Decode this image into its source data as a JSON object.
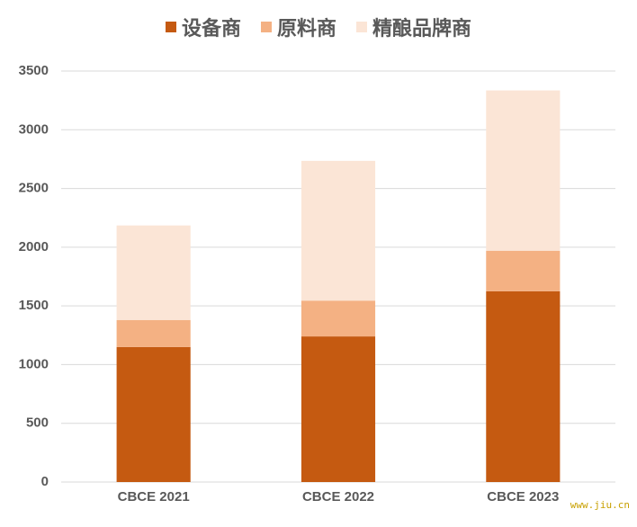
{
  "chart_data": {
    "type": "stacked_bar",
    "categories": [
      "CBCE 2021",
      "CBCE 2022",
      "CBCE 2023"
    ],
    "series": [
      {
        "name": "设备商",
        "color": "#c55a11",
        "values": [
          1150,
          1240,
          1625
        ]
      },
      {
        "name": "原料商",
        "color": "#f4b183",
        "values": [
          230,
          305,
          345
        ]
      },
      {
        "name": "精酿品牌商",
        "color": "#fbe5d6",
        "values": [
          805,
          1190,
          1365
        ]
      }
    ],
    "ylim": [
      0,
      3500
    ],
    "yticks": [
      0,
      500,
      1000,
      1500,
      2000,
      2500,
      3000,
      3500
    ],
    "grid": true
  },
  "watermark": "www.jiu.cn"
}
